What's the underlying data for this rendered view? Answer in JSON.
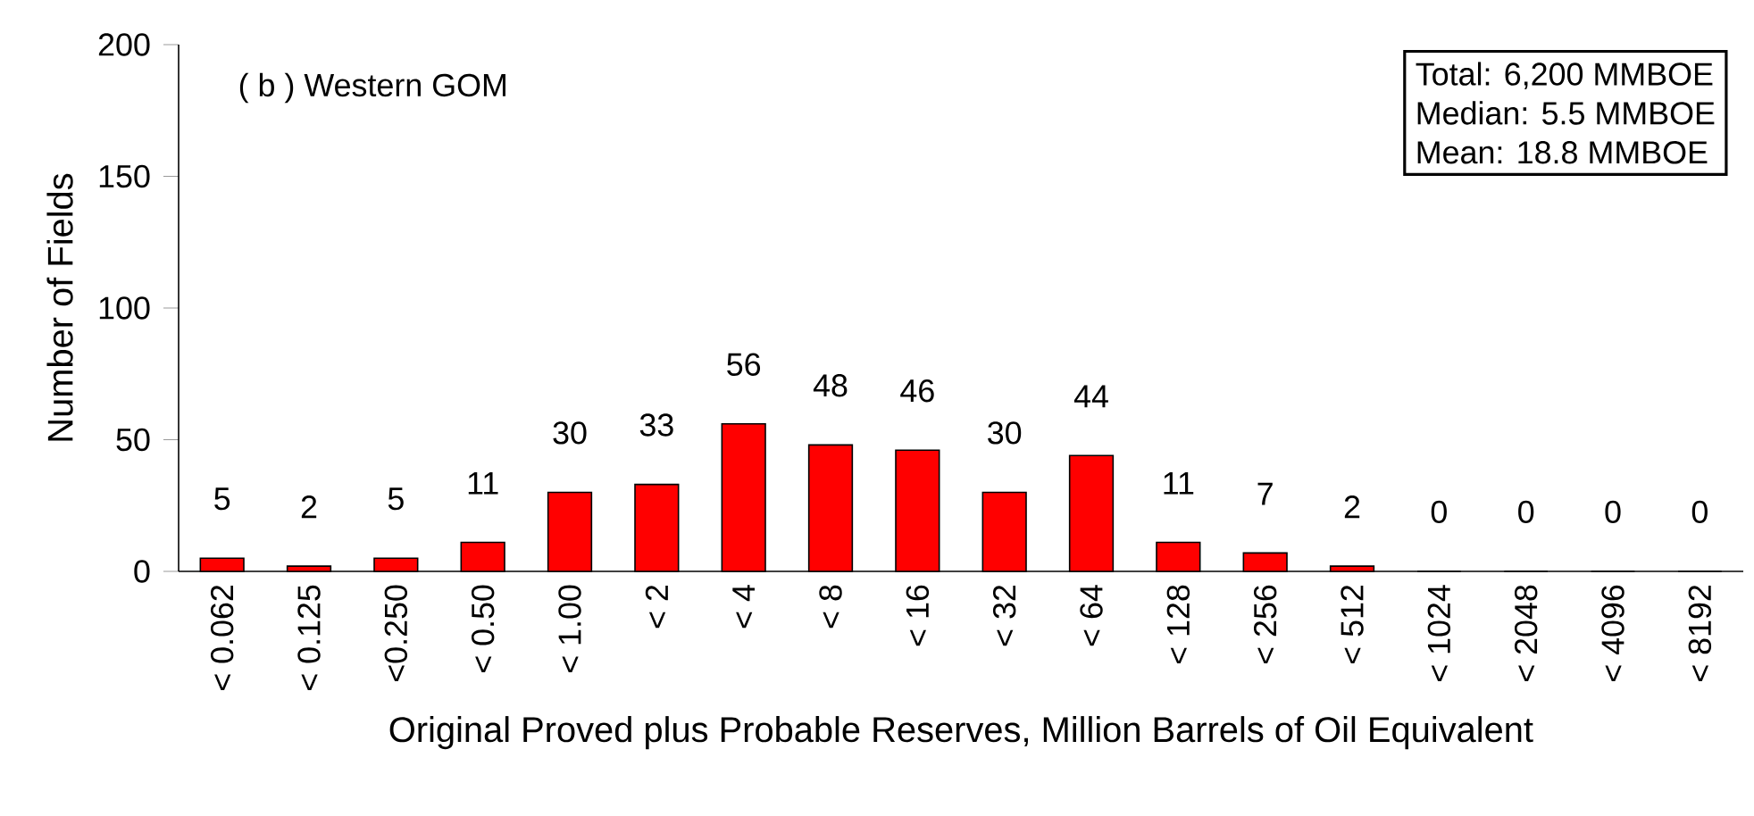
{
  "chart_data": {
    "type": "bar",
    "title": "( b )  Western GOM",
    "xlabel": "Original Proved plus Probable Reserves, Million Barrels of Oil Equivalent",
    "ylabel": "Number of Fields",
    "categories": [
      "< 0.062",
      "< 0.125",
      "<0.250",
      "< 0.50",
      "< 1.00",
      "< 2",
      "< 4",
      "< 8",
      "< 16",
      "< 32",
      "< 64",
      "< 128",
      "< 256",
      "< 512",
      "< 1024",
      "< 2048",
      "< 4096",
      "< 8192"
    ],
    "values": [
      5,
      2,
      5,
      11,
      30,
      33,
      56,
      48,
      46,
      30,
      44,
      11,
      7,
      2,
      0,
      0,
      0,
      0
    ],
    "color": "#ff0000",
    "ylim": [
      0,
      200
    ],
    "yticks": [
      0,
      50,
      100,
      150,
      200
    ],
    "data_labels": true,
    "annotations": [
      "Total:    6,200 MMBOE",
      "Median:      5.5 MMBOE",
      "Mean:     18.8 MMBOE"
    ]
  }
}
